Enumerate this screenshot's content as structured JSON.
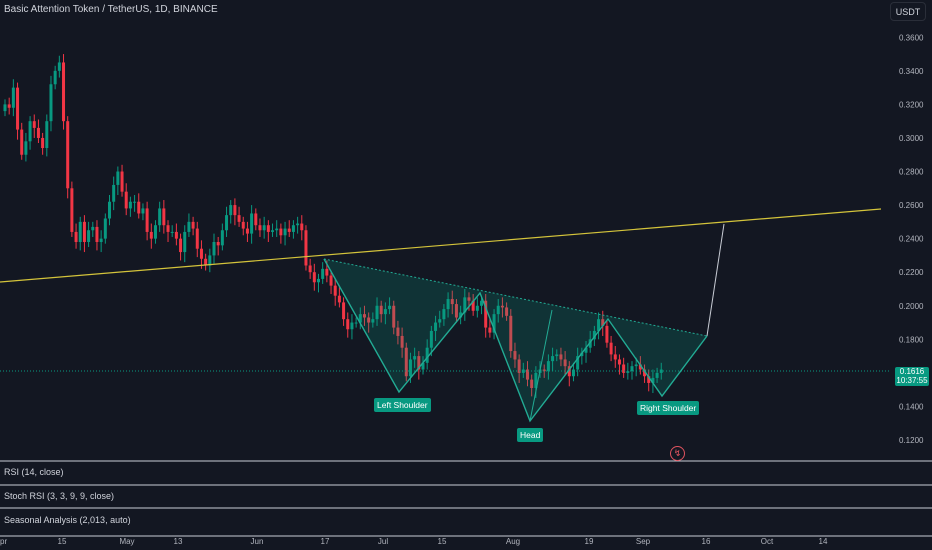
{
  "header": {
    "title": "Basic Attention Token / TetherUS, 1D, BINANCE"
  },
  "currency_button": "USDT",
  "last_price": {
    "value": "0.1616",
    "countdown": "10:37:55"
  },
  "price_axis": [
    "0.3600",
    "0.3400",
    "0.3200",
    "0.3000",
    "0.2800",
    "0.2600",
    "0.2400",
    "0.2200",
    "0.2000",
    "0.1800",
    "0.1400",
    "0.1200"
  ],
  "time_axis": [
    "pr",
    "15",
    "May",
    "13",
    "Jun",
    "17",
    "Jul",
    "15",
    "Aug",
    "19",
    "Sep",
    "16",
    "Oct",
    "14"
  ],
  "pattern_labels": {
    "left": "Left Shoulder",
    "head": "Head",
    "right": "Right Shoulder"
  },
  "panels": [
    {
      "label": "RSI (14, close)"
    },
    {
      "label": "Stoch RSI (3, 3, 9, 9, close)"
    },
    {
      "label": "Seasonal Analysis (2,013, auto)"
    }
  ],
  "icons": {
    "flash": "lightning-icon"
  },
  "colors": {
    "up": "#089981",
    "down": "#f23645",
    "trendline": "#d4c43b",
    "background": "#131722"
  },
  "chart_data": {
    "type": "candlestick",
    "symbol": "BATUSDT",
    "ylim": [
      0.11,
      0.375
    ],
    "closes": [
      0.32,
      0.318,
      0.33,
      0.305,
      0.29,
      0.298,
      0.31,
      0.306,
      0.3,
      0.294,
      0.31,
      0.332,
      0.34,
      0.345,
      0.31,
      0.27,
      0.244,
      0.238,
      0.25,
      0.238,
      0.245,
      0.247,
      0.238,
      0.24,
      0.252,
      0.262,
      0.272,
      0.28,
      0.268,
      0.258,
      0.262,
      0.262,
      0.255,
      0.258,
      0.244,
      0.24,
      0.248,
      0.258,
      0.248,
      0.244,
      0.244,
      0.24,
      0.232,
      0.244,
      0.25,
      0.246,
      0.234,
      0.228,
      0.224,
      0.23,
      0.238,
      0.236,
      0.245,
      0.254,
      0.26,
      0.254,
      0.25,
      0.246,
      0.243,
      0.255,
      0.248,
      0.245,
      0.248,
      0.244,
      0.245,
      0.246,
      0.242,
      0.246,
      0.244,
      0.248,
      0.249,
      0.245,
      0.224,
      0.22,
      0.214,
      0.216,
      0.222,
      0.218,
      0.212,
      0.206,
      0.202,
      0.192,
      0.186,
      0.19,
      0.19,
      0.195,
      0.193,
      0.19,
      0.192,
      0.2,
      0.195,
      0.198,
      0.2,
      0.187,
      0.182,
      0.175,
      0.158,
      0.168,
      0.17,
      0.162,
      0.166,
      0.175,
      0.185,
      0.19,
      0.192,
      0.198,
      0.204,
      0.201,
      0.193,
      0.196,
      0.205,
      0.203,
      0.197,
      0.2,
      0.203,
      0.187,
      0.184,
      0.195,
      0.2,
      0.199,
      0.194,
      0.173,
      0.168,
      0.16,
      0.162,
      0.156,
      0.151,
      0.16,
      0.162,
      0.161,
      0.167,
      0.17,
      0.171,
      0.168,
      0.164,
      0.158,
      0.162,
      0.17,
      0.172,
      0.175,
      0.18,
      0.185,
      0.192,
      0.188,
      0.178,
      0.171,
      0.168,
      0.165,
      0.16,
      0.161,
      0.164,
      0.165,
      0.162,
      0.158,
      0.154,
      0.157,
      0.16,
      0.162
    ]
  }
}
